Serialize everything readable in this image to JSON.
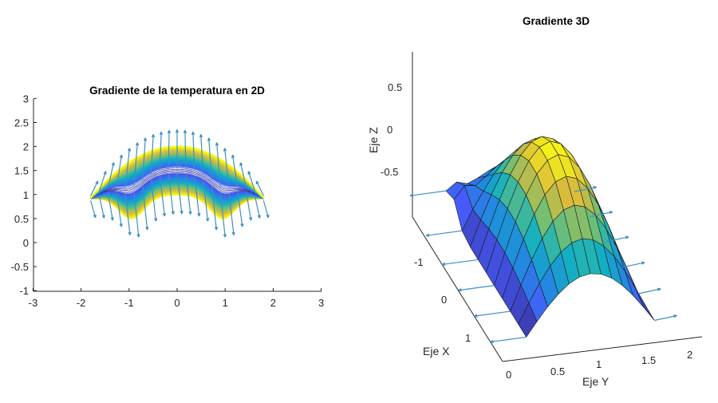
{
  "colors": {
    "axis": "#262626",
    "arrow": "#3d8fc4",
    "edge": "#1a1a1a",
    "colormap": "parula"
  },
  "chart_data": [
    {
      "type": "contour+quiver",
      "title": "Gradiente de la temperatura en 2D",
      "xlim": [
        -3,
        3
      ],
      "ylim": [
        -1,
        3
      ],
      "xticks": [
        "-3",
        "-2",
        "-1",
        "0",
        "1",
        "2",
        "3"
      ],
      "yticks": [
        "3",
        "2.5",
        "2",
        "1.5",
        "1",
        "0.5",
        "0",
        "-0.5",
        "-1"
      ],
      "grid": false
    },
    {
      "type": "surface+quiver3",
      "title": "Gradiente 3D",
      "xlabel": "Eje X",
      "ylabel": "Eje Y",
      "zlabel": "Eje Z",
      "xticks": [
        "-1",
        "0",
        "1"
      ],
      "yticks": [
        "0",
        "0.5",
        "1",
        "1.5",
        "2"
      ],
      "zticks": [
        "0.5",
        "0",
        "-0.5"
      ],
      "grid": false
    }
  ]
}
